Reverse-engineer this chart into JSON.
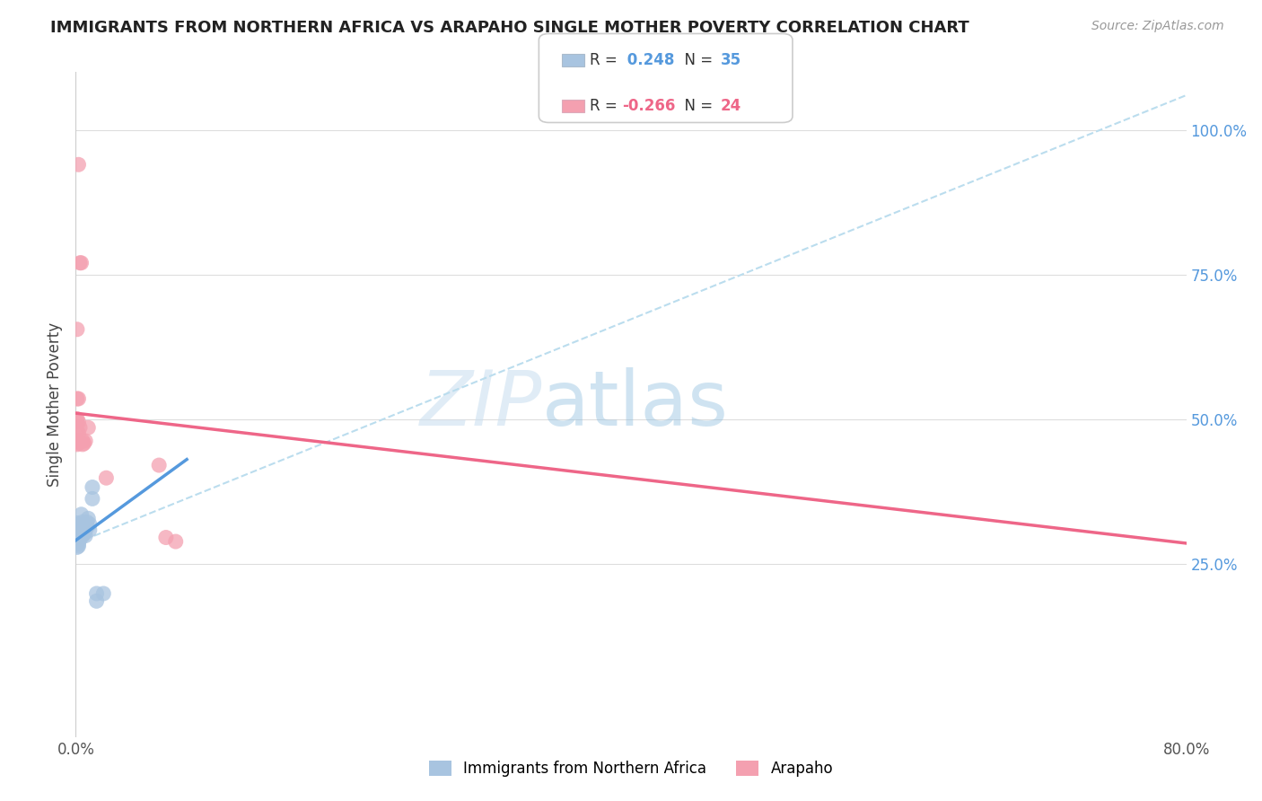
{
  "title": "IMMIGRANTS FROM NORTHERN AFRICA VS ARAPAHO SINGLE MOTHER POVERTY CORRELATION CHART",
  "source": "Source: ZipAtlas.com",
  "ylabel": "Single Mother Poverty",
  "ytick_labels": [
    "25.0%",
    "50.0%",
    "75.0%",
    "100.0%"
  ],
  "ytick_values": [
    0.25,
    0.5,
    0.75,
    1.0
  ],
  "xlim": [
    0.0,
    0.8
  ],
  "ylim": [
    -0.05,
    1.1
  ],
  "blue_R": 0.248,
  "blue_N": 35,
  "pink_R": -0.266,
  "pink_N": 24,
  "blue_color": "#a8c4e0",
  "pink_color": "#f4a0b0",
  "blue_line_color": "#5599dd",
  "pink_line_color": "#ee6688",
  "dashed_line_color": "#bbddee",
  "watermark_zip": "ZIP",
  "watermark_atlas": "atlas",
  "legend_blue_label": "Immigrants from Northern Africa",
  "legend_pink_label": "Arapaho",
  "blue_points": [
    [
      0.001,
      0.3
    ],
    [
      0.001,
      0.31
    ],
    [
      0.002,
      0.295
    ],
    [
      0.002,
      0.31
    ],
    [
      0.001,
      0.32
    ],
    [
      0.002,
      0.3
    ],
    [
      0.003,
      0.308
    ],
    [
      0.003,
      0.318
    ],
    [
      0.001,
      0.293
    ],
    [
      0.001,
      0.29
    ],
    [
      0.002,
      0.288
    ],
    [
      0.003,
      0.292
    ],
    [
      0.002,
      0.283
    ],
    [
      0.001,
      0.285
    ],
    [
      0.001,
      0.278
    ],
    [
      0.002,
      0.28
    ],
    [
      0.003,
      0.312
    ],
    [
      0.004,
      0.335
    ],
    [
      0.004,
      0.318
    ],
    [
      0.005,
      0.322
    ],
    [
      0.005,
      0.298
    ],
    [
      0.006,
      0.312
    ],
    [
      0.006,
      0.302
    ],
    [
      0.007,
      0.308
    ],
    [
      0.007,
      0.298
    ],
    [
      0.008,
      0.322
    ],
    [
      0.008,
      0.312
    ],
    [
      0.009,
      0.328
    ],
    [
      0.01,
      0.318
    ],
    [
      0.01,
      0.308
    ],
    [
      0.012,
      0.382
    ],
    [
      0.012,
      0.362
    ],
    [
      0.015,
      0.198
    ],
    [
      0.015,
      0.185
    ],
    [
      0.02,
      0.198
    ]
  ],
  "pink_points": [
    [
      0.002,
      0.94
    ],
    [
      0.003,
      0.77
    ],
    [
      0.004,
      0.77
    ],
    [
      0.001,
      0.655
    ],
    [
      0.001,
      0.535
    ],
    [
      0.002,
      0.535
    ],
    [
      0.001,
      0.5
    ],
    [
      0.001,
      0.495
    ],
    [
      0.002,
      0.495
    ],
    [
      0.001,
      0.48
    ],
    [
      0.002,
      0.475
    ],
    [
      0.003,
      0.485
    ],
    [
      0.001,
      0.462
    ],
    [
      0.001,
      0.456
    ],
    [
      0.002,
      0.458
    ],
    [
      0.005,
      0.462
    ],
    [
      0.005,
      0.456
    ],
    [
      0.006,
      0.458
    ],
    [
      0.007,
      0.462
    ],
    [
      0.009,
      0.485
    ],
    [
      0.022,
      0.398
    ],
    [
      0.06,
      0.42
    ],
    [
      0.065,
      0.295
    ],
    [
      0.072,
      0.288
    ]
  ],
  "blue_line_x": [
    0.0,
    0.08
  ],
  "blue_line_y": [
    0.29,
    0.43
  ],
  "pink_line_x": [
    0.0,
    0.8
  ],
  "pink_line_y": [
    0.51,
    0.285
  ],
  "dashed_line_x": [
    0.0,
    0.8
  ],
  "dashed_line_y": [
    0.285,
    1.06
  ]
}
